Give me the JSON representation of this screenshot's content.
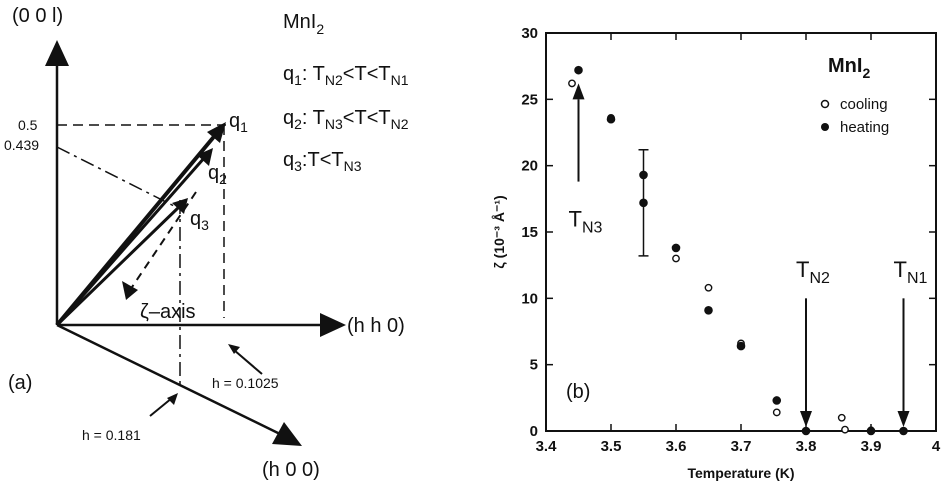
{
  "panel_a": {
    "axis_z": "(0 0 l)",
    "axis_hh": "(h h 0)",
    "axis_h": "(h 0 0)",
    "compound": "MnI",
    "compound_sub": "2",
    "y_05": "0.5",
    "y_0439": "0.439",
    "panel_letter": "(a)",
    "zeta_axis": "ζ–axis",
    "h_01025": "h = 0.1025",
    "h_0181": "h = 0.181",
    "q1": "q1",
    "q2": "q2",
    "q3": "q3",
    "legend_lines": [
      {
        "q": "q",
        "qsub": "1",
        "text": ": T",
        "s1": "N2",
        "mid": "<T<T",
        "s2": "N1"
      },
      {
        "q": "q",
        "qsub": "2",
        "text": ": T",
        "s1": "N3",
        "mid": "<T<T",
        "s2": "N2"
      },
      {
        "q": "q",
        "qsub": "3",
        "text": ":T<T",
        "s1": "N3",
        "mid": "",
        "s2": ""
      }
    ]
  },
  "chart_data": {
    "type": "scatter",
    "panel_letter": "(b)",
    "title": "MnI",
    "title_sub": "2",
    "xlabel": "Temperature (K)",
    "ylabel": "ζ (10⁻³ Å⁻¹)",
    "xlim": [
      3.4,
      4.0
    ],
    "ylim": [
      0,
      30
    ],
    "xticks": [
      "3.4",
      "3.5",
      "3.6",
      "3.7",
      "3.8",
      "3.9",
      "4"
    ],
    "yticks": [
      "0",
      "5",
      "10",
      "15",
      "20",
      "25",
      "30"
    ],
    "legend_position": "top-right",
    "series": [
      {
        "name": "cooling",
        "marker": "open-circle",
        "x": [
          3.44,
          3.5,
          3.6,
          3.65,
          3.7,
          3.755,
          3.855,
          3.86,
          3.9,
          3.95
        ],
        "y": [
          26.2,
          23.6,
          13.0,
          10.8,
          6.6,
          1.4,
          1.0,
          0.1,
          0.05,
          0.0
        ]
      },
      {
        "name": "heating",
        "marker": "filled-circle",
        "x": [
          3.45,
          3.5,
          3.55,
          3.55,
          3.6,
          3.65,
          3.7,
          3.755,
          3.8,
          3.9,
          3.95
        ],
        "y": [
          27.2,
          23.5,
          19.3,
          17.2,
          13.8,
          9.1,
          6.4,
          2.3,
          0.0,
          0.0,
          0.0
        ]
      }
    ],
    "error_bar": {
      "x": 3.55,
      "ymin": 13.2,
      "ymax": 21.2
    },
    "annotations": [
      {
        "label": "T",
        "sub": "N3",
        "x": 3.45,
        "arrow_from": 18.8,
        "arrow_to": 26.2,
        "direction": "up",
        "text_y": 15.4
      },
      {
        "label": "T",
        "sub": "N2",
        "x": 3.8,
        "arrow_from": 10.0,
        "arrow_to": 0.3,
        "direction": "down",
        "text_y": 11.6
      },
      {
        "label": "T",
        "sub": "N1",
        "x": 3.95,
        "arrow_from": 10.0,
        "arrow_to": 0.3,
        "direction": "down",
        "text_y": 11.6
      }
    ]
  }
}
